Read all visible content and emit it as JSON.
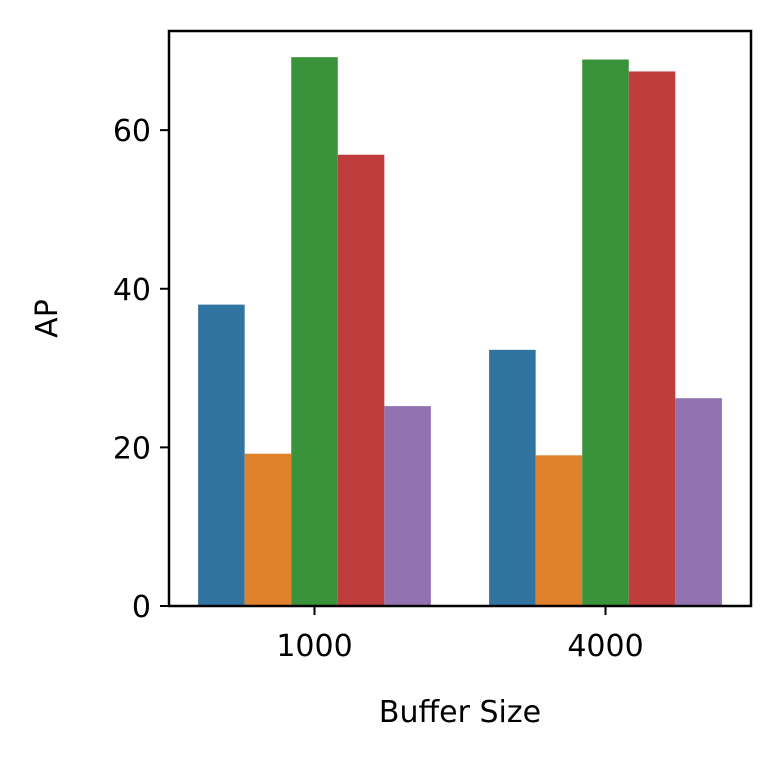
{
  "chart_data": {
    "type": "bar",
    "title": "",
    "xlabel": "Buffer Size",
    "ylabel": "AP",
    "categories": [
      "1000",
      "4000"
    ],
    "ylim": [
      0,
      72.5
    ],
    "yticks": [
      0,
      20,
      40,
      60
    ],
    "grid": false,
    "legend": "none",
    "series": [
      {
        "values": [
          38.0,
          32.3
        ],
        "color": "#3274a1"
      },
      {
        "values": [
          19.2,
          19.0
        ],
        "color": "#e1812c"
      },
      {
        "values": [
          69.2,
          68.9
        ],
        "color": "#3a923a"
      },
      {
        "values": [
          56.9,
          67.4
        ],
        "color": "#c03d3e"
      },
      {
        "values": [
          25.2,
          26.2
        ],
        "color": "#9372b2"
      }
    ]
  }
}
